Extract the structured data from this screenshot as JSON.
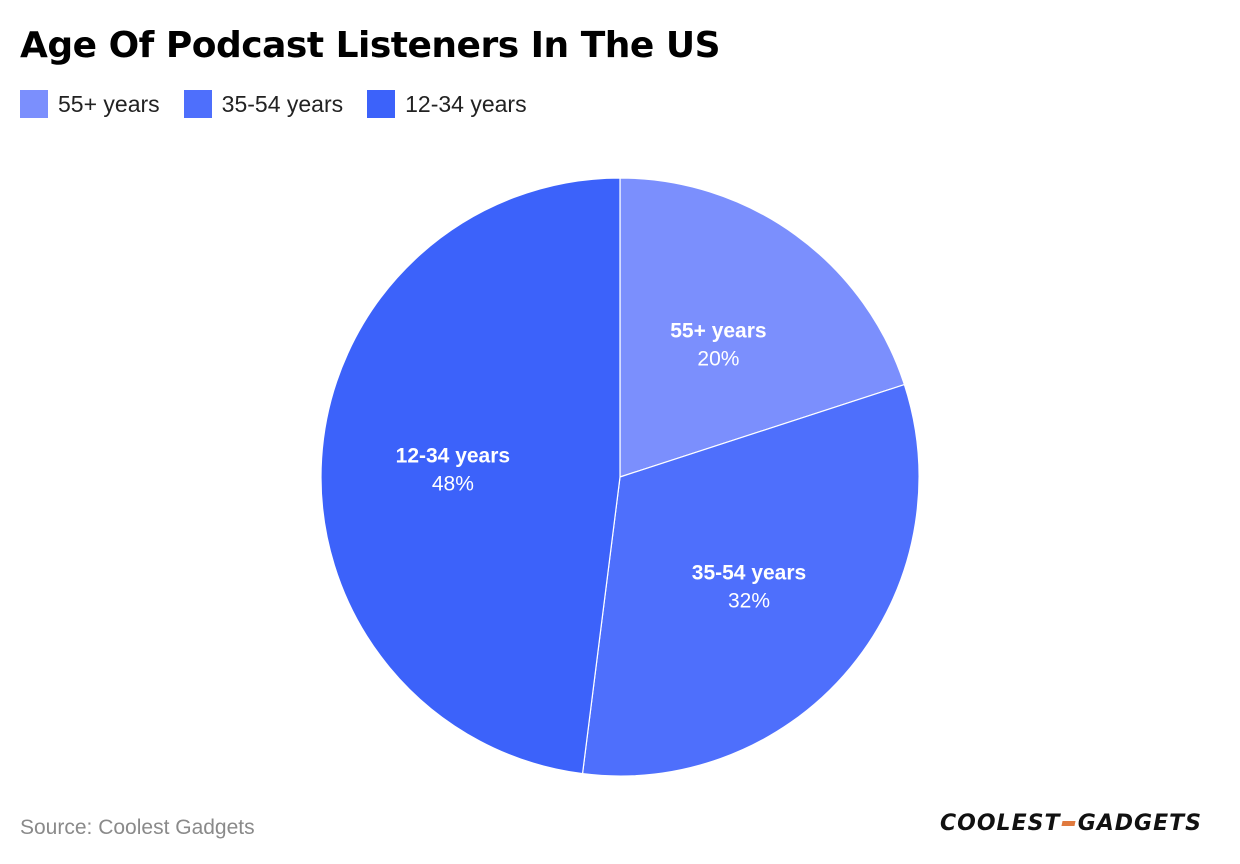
{
  "title": "Age Of Podcast Listeners In The US",
  "source": "Source: Coolest Gadgets",
  "logo": {
    "left": "COOLEST",
    "right": "GADGETS"
  },
  "colors": {
    "55plus": "#7b8ffd",
    "35to54": "#4e6ffc",
    "12to34": "#3c62fa",
    "slice_border": "#ffffff",
    "logo_accent": "#e07a3e"
  },
  "chart_data": {
    "type": "pie",
    "title": "Age Of Podcast Listeners In The US",
    "legend_position": "top-left",
    "slices": [
      {
        "label": "55+ years",
        "value": 20,
        "value_label": "20%",
        "color": "#7b8ffd"
      },
      {
        "label": "35-54 years",
        "value": 32,
        "value_label": "32%",
        "color": "#4e6ffc"
      },
      {
        "label": "12-34 years",
        "value": 48,
        "value_label": "48%",
        "color": "#3c62fa"
      }
    ]
  }
}
